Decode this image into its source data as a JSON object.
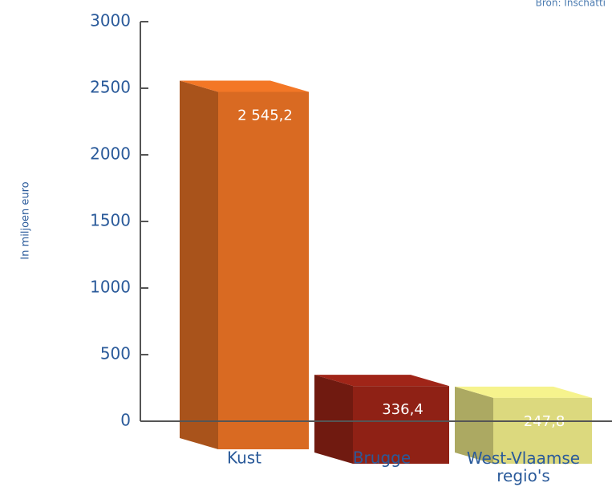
{
  "chart_data": {
    "type": "bar3d",
    "source": "Bron: Inschatti",
    "ylabel": "In miljoen euro",
    "categories": [
      "Kust",
      "Brugge",
      "West-Vlaamse regio's"
    ],
    "values": [
      2545.2,
      336.4,
      247.8
    ],
    "value_labels": [
      "2 545,2",
      "336,4",
      "247,8"
    ],
    "colors": [
      "#d96a22",
      "#8f2115",
      "#dcd97e"
    ],
    "ylim": [
      0,
      3000
    ],
    "yticks": [
      0,
      500,
      1000,
      1500,
      2000,
      2500,
      3000
    ]
  }
}
